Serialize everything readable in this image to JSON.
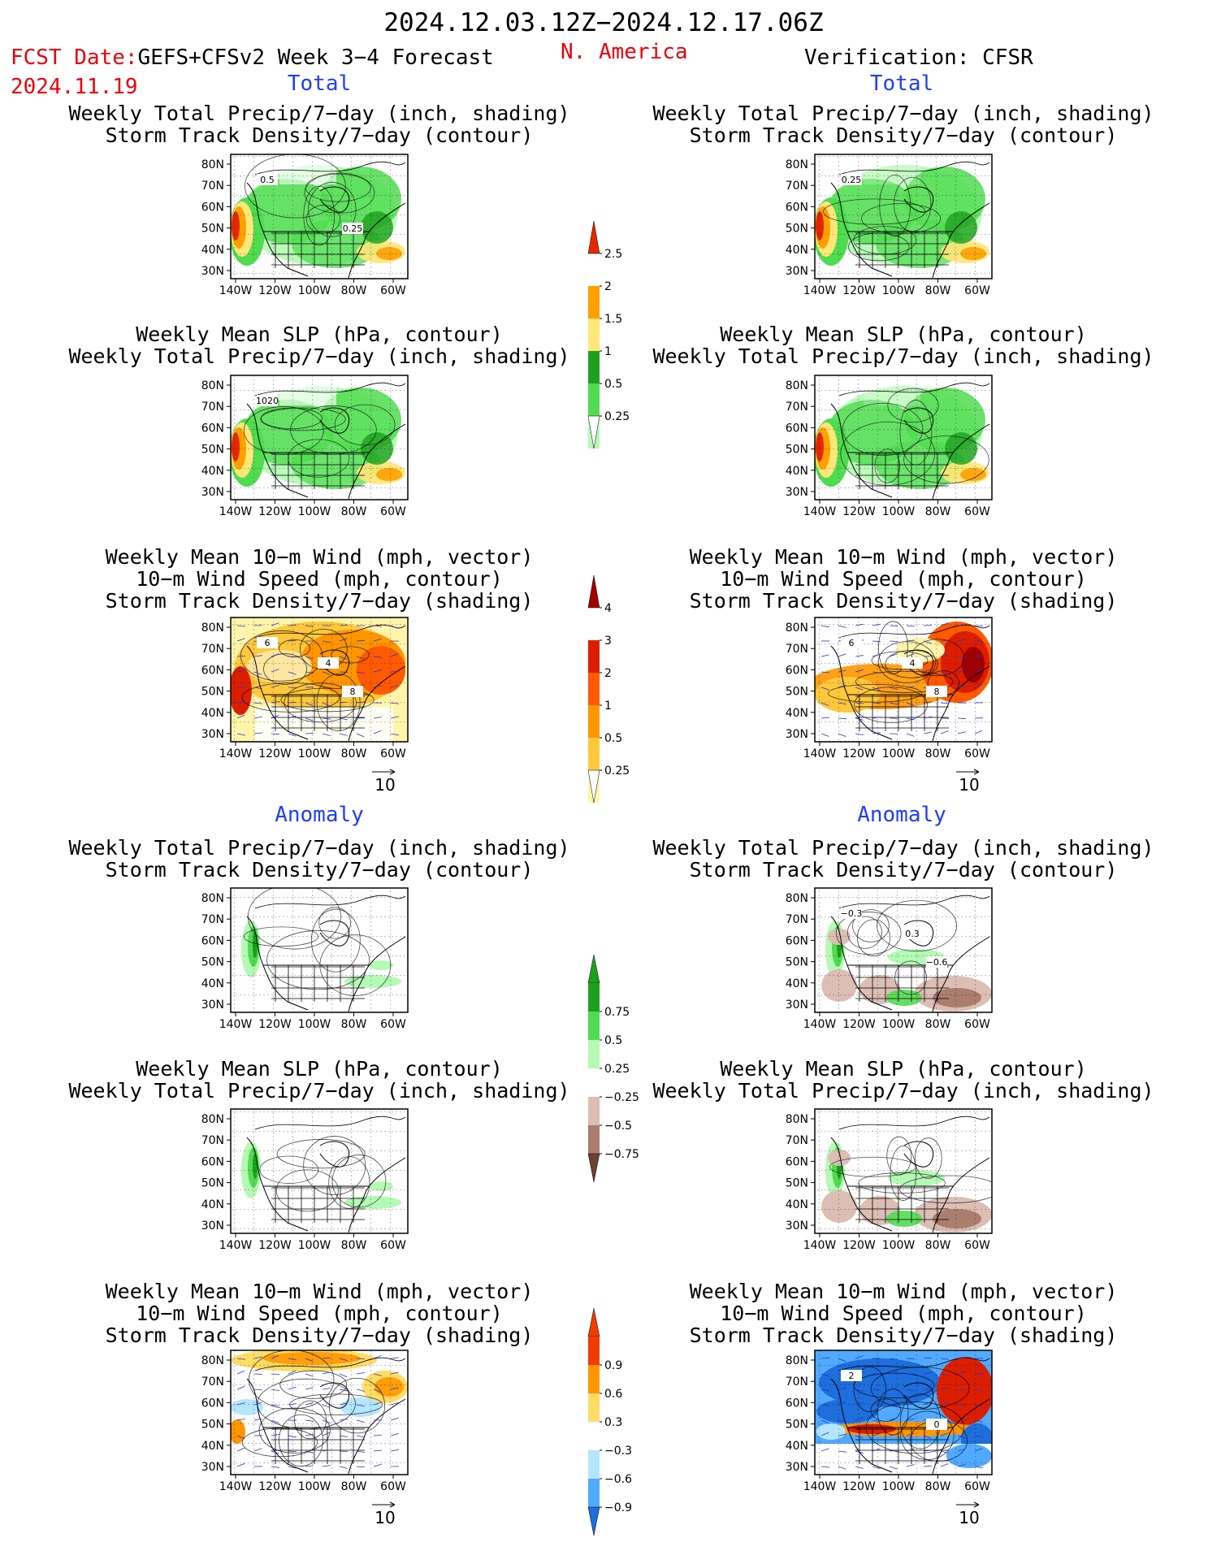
{
  "header": {
    "date_range": "2024.12.03.12Z−2024.12.17.06Z",
    "fcst_label": "FCST Date:",
    "model": "GEFS+CFSv2 Week 3−4 Forecast",
    "region": "N. America",
    "fcst_date": "2024.11.19",
    "verification": "Verification: CFSR"
  },
  "sections": {
    "total": "Total",
    "anomaly": "Anomaly"
  },
  "panel_titles": {
    "precip_storm": [
      "Weekly Total Precip/7−day (inch, shading)",
      "Storm Track Density/7−day (contour)"
    ],
    "slp_precip": [
      "Weekly Mean SLP (hPa, contour)",
      "Weekly Total Precip/7−day (inch, shading)"
    ],
    "wind_storm": [
      "Weekly Mean 10−m Wind (mph, vector)",
      "10−m Wind Speed (mph, contour)",
      "Storm Track Density/7−day (shading)"
    ]
  },
  "axes": {
    "lat_ticks": [
      "80N",
      "70N",
      "60N",
      "50N",
      "40N",
      "30N"
    ],
    "lon_ticks": [
      "140W",
      "120W",
      "100W",
      "80W",
      "60W"
    ],
    "vector_ref": "10"
  },
  "panel_annotations": {
    "fc_total_precip": [
      "0.5",
      "0.25"
    ],
    "ver_total_precip": [
      "0.25"
    ],
    "fc_total_slp": [
      "1020"
    ],
    "fc_total_wind": [
      "6",
      "8",
      "4"
    ],
    "ver_total_wind": [
      "6",
      "8",
      "4"
    ],
    "ver_anom_precip": [
      "−0.3",
      "−0.6",
      "0.3"
    ],
    "ver_anom_wind": [
      "2",
      "0"
    ]
  },
  "colors": {
    "title_red": "#e8000b",
    "section_blue": "#1f3dff",
    "land": "#ffffff",
    "precip_light": "#b4fab4",
    "precip_mid": "#50dc50",
    "precip_dark": "#1ea01e",
    "precip_yellow": "#ffe678",
    "precip_orange": "#ffa000",
    "precip_red": "#e62800",
    "dry_light": "#dcbeb4",
    "dry_mid": "#aa7d6e",
    "dry_dark": "#6e4132",
    "storm_light": "#fff5aa",
    "storm_orange": "#ff9600",
    "storm_red": "#dc1e00",
    "storm_dark": "#a00000",
    "anom_blue_dark": "#1e6edc",
    "anom_blue": "#50aaff",
    "anom_blue_light": "#b4e6ff"
  },
  "chart_data": [
    {
      "type": "heatmap",
      "id": "colorbar_total_precip",
      "levels": [
        "0.25",
        "0.5",
        "1",
        "1.5",
        "2",
        "2.5"
      ],
      "colors": [
        "#b4fab4",
        "#50dc50",
        "#1ea01e",
        "#ffe678",
        "#ffa000",
        "#e62800"
      ]
    },
    {
      "type": "heatmap",
      "id": "colorbar_total_storm",
      "levels": [
        "0.25",
        "0.5",
        "1",
        "2",
        "3",
        "4"
      ],
      "colors": [
        "#fff5aa",
        "#ffc83c",
        "#ff9600",
        "#ff5a00",
        "#dc1e00",
        "#a00000"
      ]
    },
    {
      "type": "heatmap",
      "id": "colorbar_anom_precip",
      "levels": [
        "0.75",
        "0.5",
        "0.25",
        "−0.25",
        "−0.5",
        "−0.75"
      ],
      "colors": [
        "#1ea01e",
        "#50dc50",
        "#b4fab4",
        "#ffffff",
        "#dcbeb4",
        "#aa7d6e",
        "#6e4132"
      ]
    },
    {
      "type": "heatmap",
      "id": "colorbar_anom_storm",
      "levels": [
        "0.9",
        "0.6",
        "0.3",
        "−0.3",
        "−0.6",
        "−0.9"
      ],
      "colors": [
        "#f03c00",
        "#ff9600",
        "#ffdc64",
        "#ffffff",
        "#b4e6ff",
        "#50aaff",
        "#1e6edc"
      ]
    }
  ]
}
